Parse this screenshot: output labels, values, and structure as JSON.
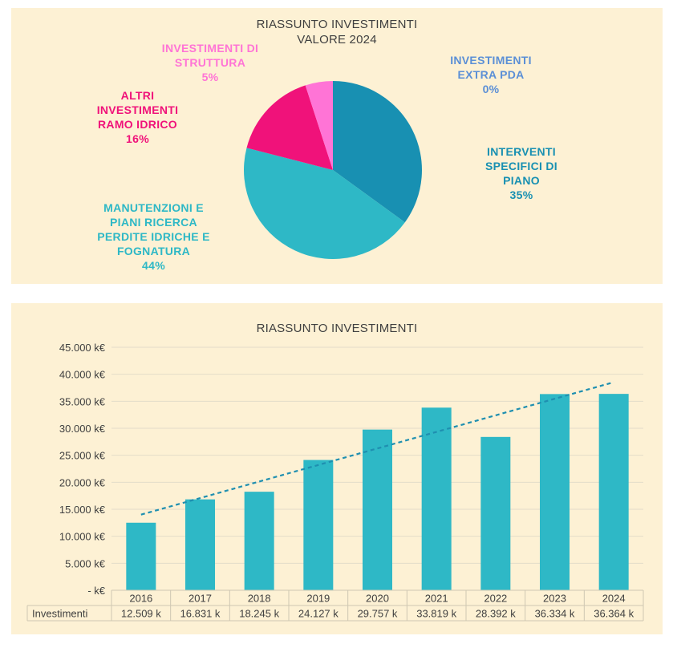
{
  "pie_chart": {
    "title_line1": "RIASSUNTO INVESTIMENTI",
    "title_line2": "VALORE 2024"
  },
  "bar_chart": {
    "title": "RIASSUNTO INVESTIMENTI"
  },
  "colors": {
    "panel_bg": "#fdf1d4",
    "bar": "#2eb8c6",
    "trendline": "#1f8fb0",
    "interventi": "#1890b2",
    "manutenzioni": "#2eb8c6",
    "altri": "#f0127a",
    "struttura": "#ff74d6",
    "extra": "#5b8fd6"
  },
  "chart_data": [
    {
      "type": "pie",
      "title": "RIASSUNTO INVESTIMENTI VALORE 2024",
      "slices": [
        {
          "label": "INTERVENTI SPECIFICI DI PIANO",
          "label_lines": [
            "INTERVENTI",
            "SPECIFICI DI",
            "PIANO"
          ],
          "pct_text": "35%",
          "value": 35,
          "color": "#1890b2"
        },
        {
          "label": "MANUTENZIONI E PIANI RICERCA PERDITE IDRICHE E FOGNATURA",
          "label_lines": [
            "MANUTENZIONI E",
            "PIANI RICERCA",
            "PERDITE IDRICHE E",
            "FOGNATURA"
          ],
          "pct_text": "44%",
          "value": 44,
          "color": "#2eb8c6"
        },
        {
          "label": "ALTRI INVESTIMENTI RAMO IDRICO",
          "label_lines": [
            "ALTRI",
            "INVESTIMENTI",
            "RAMO IDRICO"
          ],
          "pct_text": "16%",
          "value": 16,
          "color": "#f0127a"
        },
        {
          "label": "INVESTIMENTI DI STRUTTURA",
          "label_lines": [
            "INVESTIMENTI DI",
            "STRUTTURA"
          ],
          "pct_text": "5%",
          "value": 5,
          "color": "#ff74d6"
        },
        {
          "label": "INVESTIMENTI EXTRA PDA",
          "label_lines": [
            "INVESTIMENTI",
            "EXTRA PDA"
          ],
          "pct_text": "0%",
          "value": 0,
          "color": "#5b8fd6"
        }
      ]
    },
    {
      "type": "bar",
      "title": "RIASSUNTO INVESTIMENTI",
      "categories": [
        "2016",
        "2017",
        "2018",
        "2019",
        "2020",
        "2021",
        "2022",
        "2023",
        "2024"
      ],
      "series": [
        {
          "name": "Investimenti",
          "values": [
            12509,
            16831,
            18245,
            24127,
            29757,
            33819,
            28392,
            36334,
            36364
          ],
          "table_labels": [
            "12.509 k",
            "16.831 k",
            "18.245 k",
            "24.127 k",
            "29.757 k",
            "33.819 k",
            "28.392 k",
            "36.334 k",
            "36.364 k"
          ]
        }
      ],
      "y_ticks": [
        0,
        5000,
        10000,
        15000,
        20000,
        25000,
        30000,
        35000,
        40000,
        45000
      ],
      "y_tick_labels": [
        "- k€",
        "5.000 k€",
        "10.000 k€",
        "15.000 k€",
        "20.000 k€",
        "25.000 k€",
        "30.000 k€",
        "35.000 k€",
        "40.000 k€",
        "45.000 k€"
      ],
      "ylim": [
        0,
        45000
      ],
      "trendline": "linear",
      "grid": true,
      "data_table": true
    }
  ]
}
